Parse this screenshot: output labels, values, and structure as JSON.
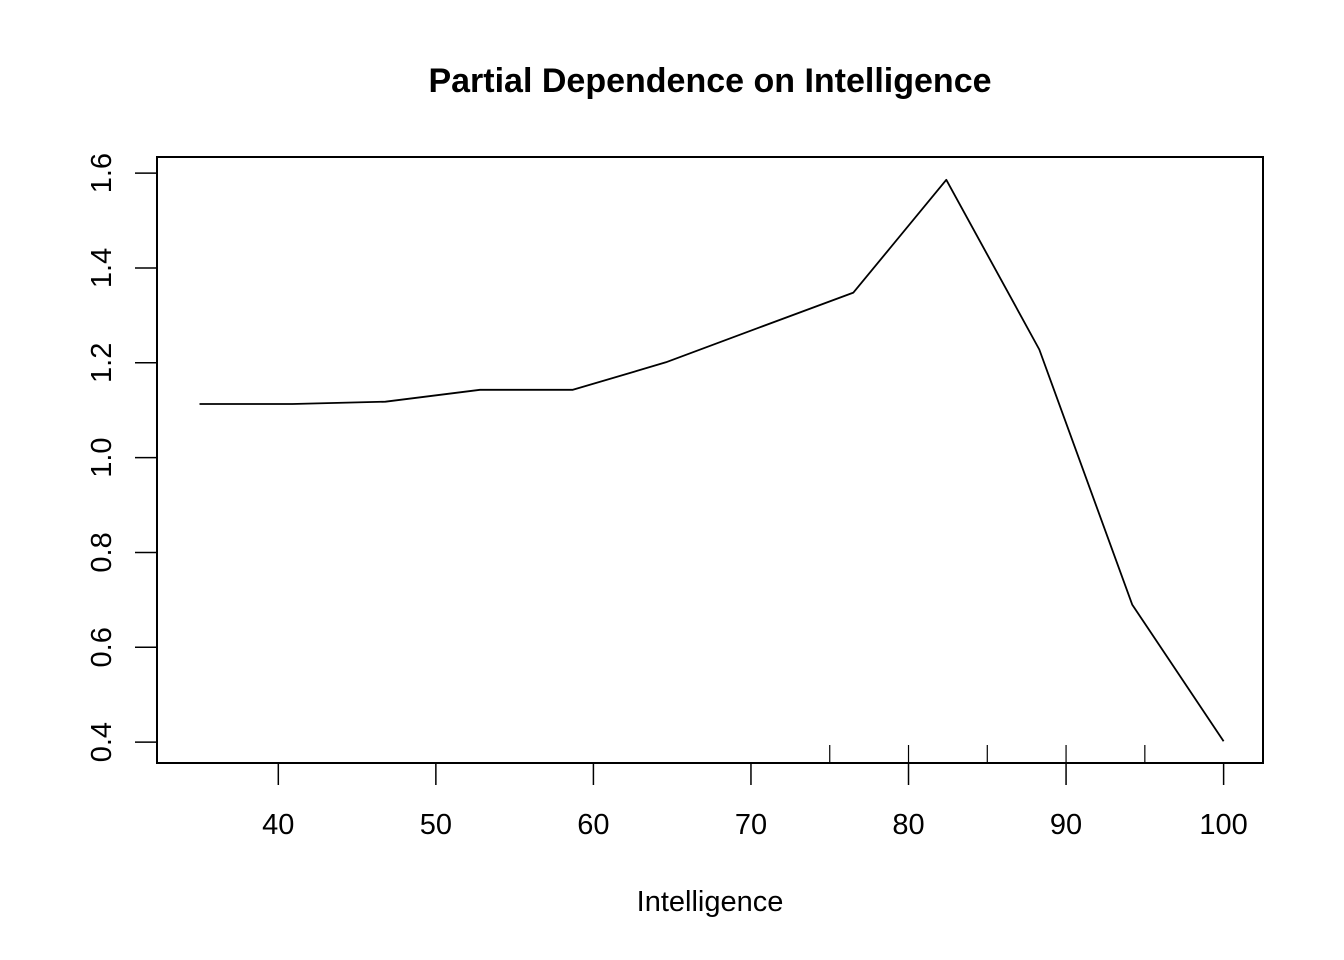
{
  "chart_data": {
    "type": "line",
    "title": "Partial Dependence on Intelligence",
    "xlabel": "Intelligence",
    "ylabel": "",
    "xlim": [
      32.3,
      102.5
    ],
    "ylim": [
      0.356,
      1.634
    ],
    "x_ticks": [
      40,
      50,
      60,
      70,
      80,
      90,
      100
    ],
    "y_ticks": [
      0.4,
      0.6,
      0.8,
      1.0,
      1.2,
      1.4,
      1.6
    ],
    "x_tick_labels": [
      "40",
      "50",
      "60",
      "70",
      "80",
      "90",
      "100"
    ],
    "y_tick_labels": [
      "0.4",
      "0.6",
      "0.8",
      "1.0",
      "1.2",
      "1.4",
      "1.6"
    ],
    "rug": [
      75,
      80,
      85,
      90,
      95
    ],
    "grid": false,
    "legend": "none",
    "color": "#000000",
    "series": [
      {
        "x": [
          35.0,
          40.9,
          46.8,
          52.8,
          58.7,
          64.6,
          70.5,
          76.5,
          82.4,
          88.3,
          94.2,
          100.0
        ],
        "values": [
          1.113,
          1.113,
          1.118,
          1.143,
          1.143,
          1.201,
          1.274,
          1.348,
          1.586,
          1.228,
          0.69,
          0.402
        ]
      }
    ]
  }
}
